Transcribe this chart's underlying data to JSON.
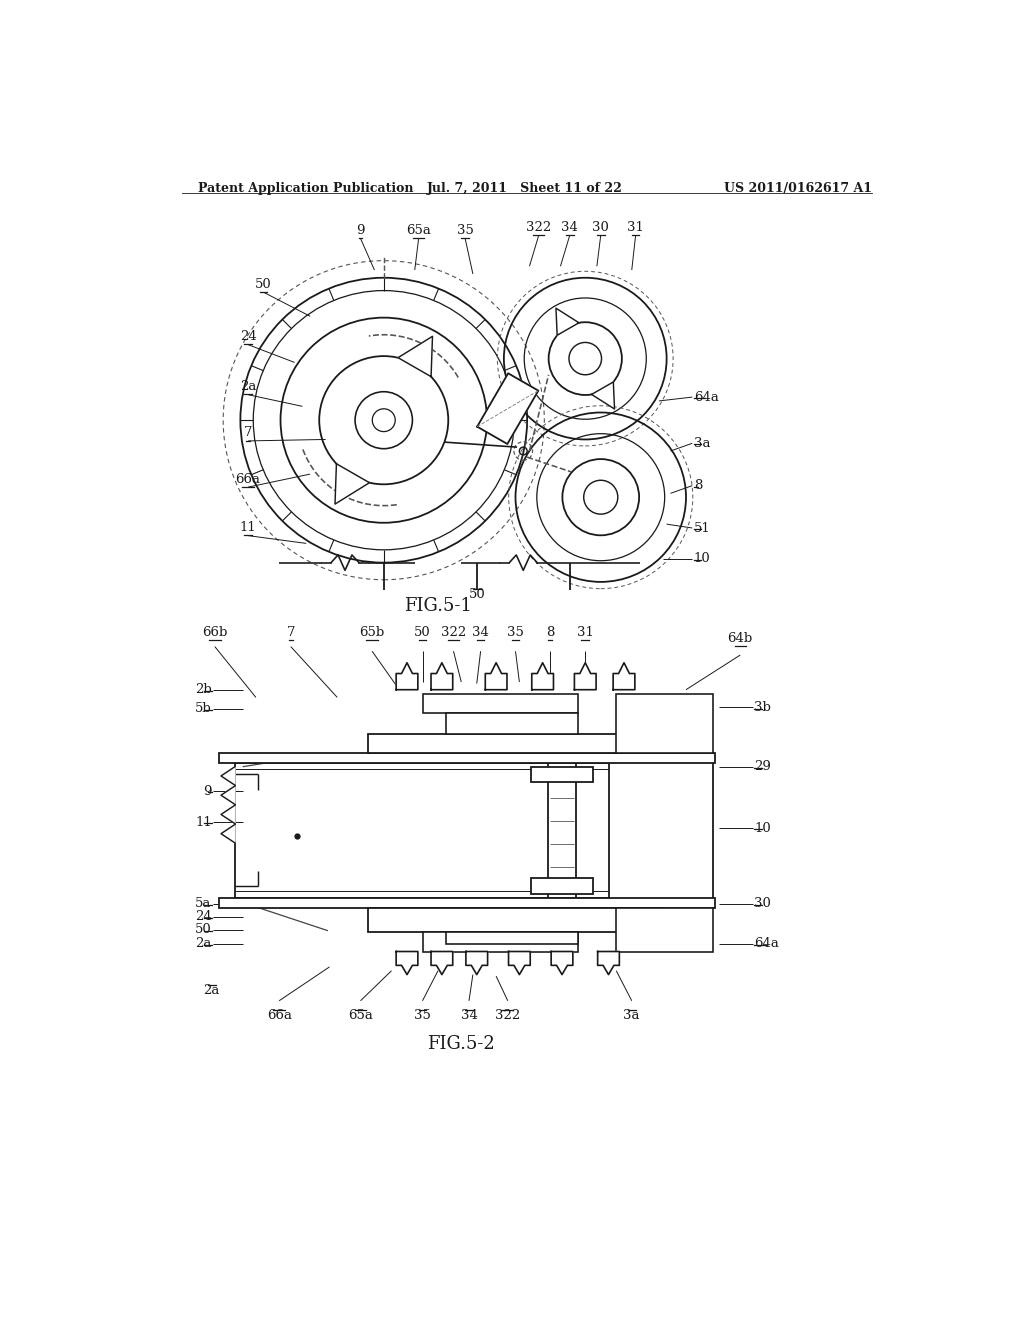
{
  "background_color": "#ffffff",
  "header_left": "Patent Application Publication",
  "header_mid": "Jul. 7, 2011   Sheet 11 of 22",
  "header_right": "US 2011/0162617 A1",
  "fig1_label": "FIG.5-1",
  "fig2_label": "FIG.5-2",
  "line_color": "#1a1a1a",
  "line_width": 1.3,
  "label_fontsize": 9.5,
  "header_fontsize": 9,
  "fig_label_fontsize": 13
}
